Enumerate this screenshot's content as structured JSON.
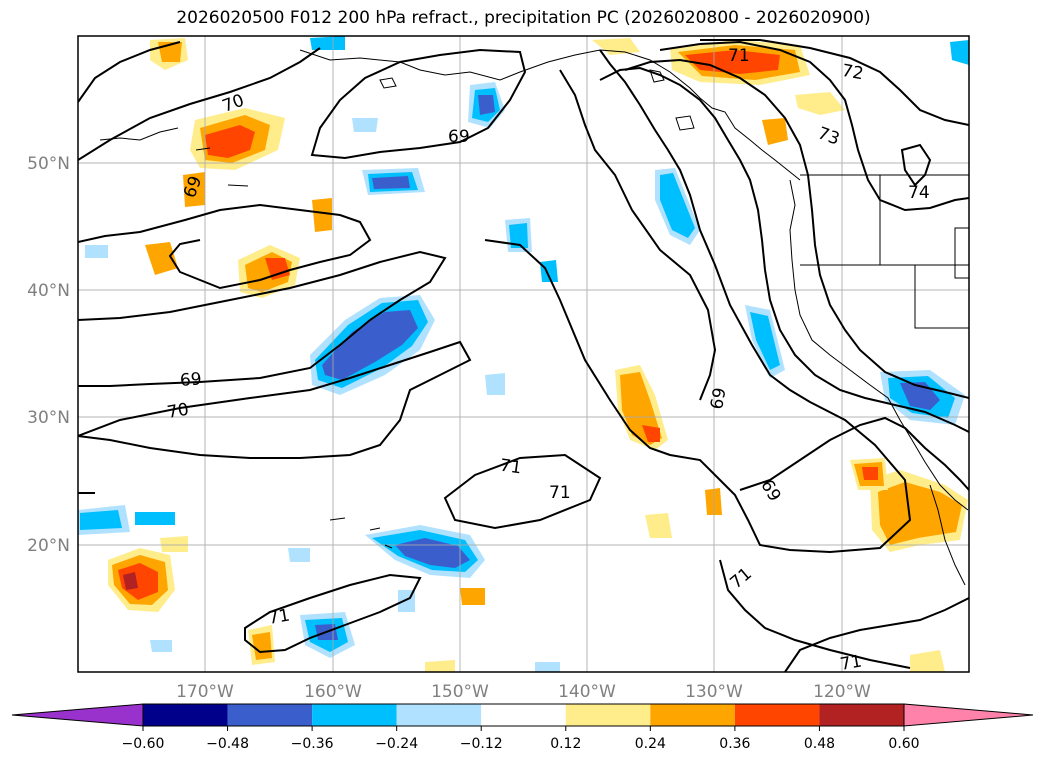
{
  "title": "2026020500 F012 200 hPa refract., precipitation PC (2026020800 - 2026020900)",
  "lat_labels": [
    "50°N",
    "40°N",
    "30°N",
    "20°N"
  ],
  "lon_labels": [
    "170°W",
    "160°W",
    "150°W",
    "140°W",
    "130°W",
    "120°W"
  ],
  "contour_labels": [
    "70",
    "69",
    "69",
    "70",
    "71",
    "71",
    "69",
    "69",
    "71",
    "71",
    "72",
    "73",
    "74",
    "71",
    "71",
    "69"
  ],
  "colorbar": {
    "ticks": [
      "−0.60",
      "−0.48",
      "−0.36",
      "−0.24",
      "−0.12",
      "0.12",
      "0.24",
      "0.36",
      "0.48",
      "0.60"
    ],
    "colors": [
      "#9932cc",
      "#00008b",
      "#3a5fcd",
      "#00bfff",
      "#b0e2ff",
      "#ffffff",
      "#ffec8b",
      "#ffa500",
      "#ff4500",
      "#b22222",
      "#ff82ab"
    ]
  }
}
